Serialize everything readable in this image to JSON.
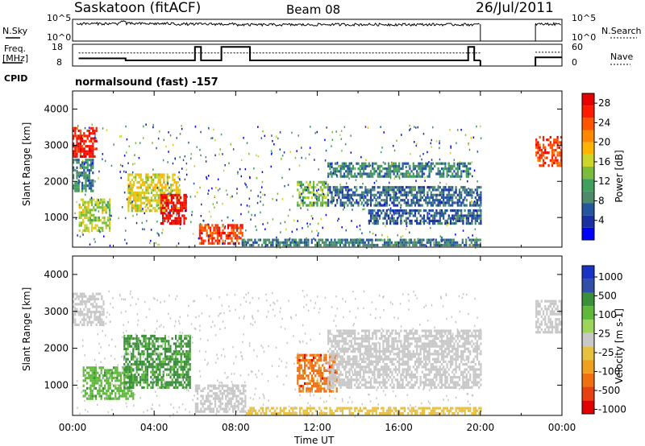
{
  "header": {
    "station": "Saskatoon (fitACF)",
    "beam": "Beam 08",
    "date": "26/Jul/2011"
  },
  "summary": {
    "nsky_label": "N.Sky",
    "nsearch_label": "N.Search",
    "freq_label_top": "Freq.",
    "freq_label_bottom": "[MHz]",
    "nave_label": "Nave",
    "cpid_label": "CPID",
    "cpid_value": "normalsound (fast) -157",
    "noise_left_ticks": [
      "10^5",
      "10^0"
    ],
    "noise_right_ticks": [
      "10^5",
      "10^0"
    ],
    "freq_left_ticks": [
      "18",
      "8"
    ],
    "freq_right_ticks": [
      "60",
      "0"
    ]
  },
  "colors": {
    "power": [
      "#0000ff",
      "#1a2fa0",
      "#24569e",
      "#4d8a6b",
      "#3f9f5d",
      "#7cbc3c",
      "#cdd42a",
      "#ffb400",
      "#ff8800",
      "#ff5500",
      "#ff1a00",
      "#e60000"
    ],
    "velocity_pos": [
      "#1a33c7",
      "#2f4fa8",
      "#3a8f3a",
      "#5fb83a",
      "#9bd65a"
    ],
    "velocity_neutral": "#c8c8c8",
    "velocity_neg": [
      "#e8c040",
      "#f0a020",
      "#f07010",
      "#e84010",
      "#e00000"
    ]
  },
  "chart_data": [
    {
      "type": "heatmap",
      "name": "power",
      "xlabel": "",
      "ylabel": "Slant Range [km]",
      "xlim": [
        0,
        24
      ],
      "ylim": [
        180,
        4500
      ],
      "yticks": [
        1000,
        2000,
        3000,
        4000
      ],
      "colorbar": {
        "label": "Power [dB]",
        "ticks": [
          4,
          8,
          12,
          16,
          20,
          24,
          28
        ],
        "range": [
          0,
          30
        ]
      },
      "features": [
        {
          "t0": 0.0,
          "t1": 1.2,
          "r0": 2650,
          "r1": 3500,
          "level": 27
        },
        {
          "t0": 0.0,
          "t1": 1.0,
          "r0": 1700,
          "r1": 2600,
          "level": 9
        },
        {
          "t0": 0.3,
          "t1": 1.8,
          "r0": 600,
          "r1": 1500,
          "level": 15
        },
        {
          "t0": 2.7,
          "t1": 5.3,
          "r0": 1150,
          "r1": 2150,
          "level": 17
        },
        {
          "t0": 4.3,
          "t1": 5.6,
          "r0": 800,
          "r1": 1600,
          "level": 28
        },
        {
          "t0": 6.2,
          "t1": 8.3,
          "r0": 250,
          "r1": 800,
          "level": 25
        },
        {
          "t0": 8.3,
          "t1": 20.0,
          "r0": 200,
          "r1": 400,
          "level": 8
        },
        {
          "t0": 11.0,
          "t1": 12.5,
          "r0": 1300,
          "r1": 2000,
          "level": 14
        },
        {
          "t0": 12.5,
          "t1": 19.5,
          "r0": 2100,
          "r1": 2500,
          "level": 9
        },
        {
          "t0": 12.5,
          "t1": 20.0,
          "r0": 1300,
          "r1": 1800,
          "level": 7
        },
        {
          "t0": 14.5,
          "t1": 20.0,
          "r0": 800,
          "r1": 1200,
          "level": 6
        },
        {
          "t0": 22.7,
          "t1": 24.0,
          "r0": 2400,
          "r1": 3200,
          "level": 25
        }
      ]
    },
    {
      "type": "heatmap",
      "name": "velocity",
      "xlabel": "Time UT",
      "ylabel": "Slant Range [km]",
      "xlim": [
        0,
        24
      ],
      "ylim": [
        180,
        4500
      ],
      "yticks": [
        1000,
        2000,
        3000,
        4000
      ],
      "xticks": [
        "00:00",
        "04:00",
        "08:00",
        "12:00",
        "16:00",
        "20:00",
        "00:00"
      ],
      "colorbar": {
        "label": "Velocity [m s-1]",
        "ticks": [
          1000,
          500,
          100,
          25,
          -25,
          -100,
          -500,
          -1000
        ],
        "range": [
          -1000,
          1000
        ]
      },
      "features": [
        {
          "t0": 0.0,
          "t1": 1.5,
          "r0": 2600,
          "r1": 3500,
          "level": 0
        },
        {
          "t0": 0.5,
          "t1": 3.0,
          "r0": 600,
          "r1": 1500,
          "level": 200
        },
        {
          "t0": 2.5,
          "t1": 5.8,
          "r0": 900,
          "r1": 2300,
          "level": 300
        },
        {
          "t0": 6.0,
          "t1": 8.5,
          "r0": 250,
          "r1": 1000,
          "level": 0
        },
        {
          "t0": 8.5,
          "t1": 20.0,
          "r0": 200,
          "r1": 400,
          "level": -60
        },
        {
          "t0": 11.0,
          "t1": 13.0,
          "r0": 800,
          "r1": 1800,
          "level": -400
        },
        {
          "t0": 12.5,
          "t1": 20.0,
          "r0": 900,
          "r1": 2500,
          "level": 0
        },
        {
          "t0": 22.7,
          "t1": 24.0,
          "r0": 2400,
          "r1": 3300,
          "level": 0
        }
      ]
    }
  ],
  "summary_data": {
    "noise_sky_x": [
      0,
      0.2,
      2.3,
      2.6,
      5.0,
      8.0,
      12.0,
      16.0,
      20.0
    ],
    "noise_sky_level": [
      0.75,
      0.8,
      0.9,
      0.8,
      0.78,
      0.75,
      0.76,
      0.76,
      0.76
    ],
    "freq_x": [
      0.3,
      2.3,
      2.6,
      3.0,
      5.9,
      6.0,
      6.3,
      7.1,
      7.3,
      8.7,
      19.4,
      19.7,
      20.0
    ],
    "freq_mhz": [
      11.5,
      11.5,
      10.6,
      10.6,
      10.6,
      16.8,
      10.6,
      10.6,
      16.8,
      10.6,
      16.8,
      10.6,
      10.6
    ],
    "nave_x": [
      0.3,
      20.0,
      22.7,
      24.0
    ],
    "nave_level": [
      36,
      36,
      0,
      38
    ]
  }
}
